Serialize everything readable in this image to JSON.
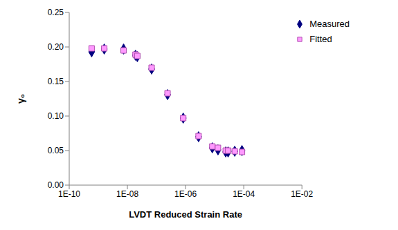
{
  "chart_data": {
    "type": "scatter",
    "x_label": "LVDT Reduced Strain Rate",
    "y_label": "γ₀",
    "log": "x",
    "grid": false,
    "legend": "top-right",
    "x": [
      5.9e-10,
      1.6e-09,
      7.4e-09,
      1.9e-08,
      2.2e-08,
      6.8e-08,
      2.4e-07,
      8.3e-07,
      2.8e-06,
      8.3e-06,
      1.3e-05,
      2.4e-05,
      2.9e-05,
      4.9e-05,
      8.7e-05
    ],
    "series": [
      {
        "name": "Measured",
        "color": "#000080",
        "marker": "diamond",
        "values": [
          0.193,
          0.197,
          0.197,
          0.188,
          0.186,
          0.168,
          0.131,
          0.097,
          0.07,
          0.054,
          0.051,
          0.048,
          0.048,
          0.049,
          0.05
        ]
      },
      {
        "name": "Fitted",
        "color": "#ff99ff",
        "marker": "square",
        "values": [
          0.198,
          0.198,
          0.195,
          0.189,
          0.187,
          0.17,
          0.133,
          0.097,
          0.071,
          0.056,
          0.054,
          0.05,
          0.05,
          0.049,
          0.048
        ]
      }
    ],
    "xlim": [
      1e-10,
      0.01
    ],
    "xticks": [
      {
        "value": 1e-10,
        "label": "1E-10"
      },
      {
        "value": 1e-08,
        "label": "1E-08"
      },
      {
        "value": 1e-06,
        "label": "1E-06"
      },
      {
        "value": 0.0001,
        "label": "1E-04"
      },
      {
        "value": 0.01,
        "label": "1E-02"
      }
    ],
    "ylim": [
      0,
      0.25
    ],
    "yticks": [
      {
        "value": 0,
        "label": "0.00"
      },
      {
        "value": 0.05,
        "label": "0.05"
      },
      {
        "value": 0.1,
        "label": "0.10"
      },
      {
        "value": 0.15,
        "label": "0.15"
      },
      {
        "value": 0.2,
        "label": "0.20"
      },
      {
        "value": 0.25,
        "label": "0.25"
      }
    ]
  }
}
